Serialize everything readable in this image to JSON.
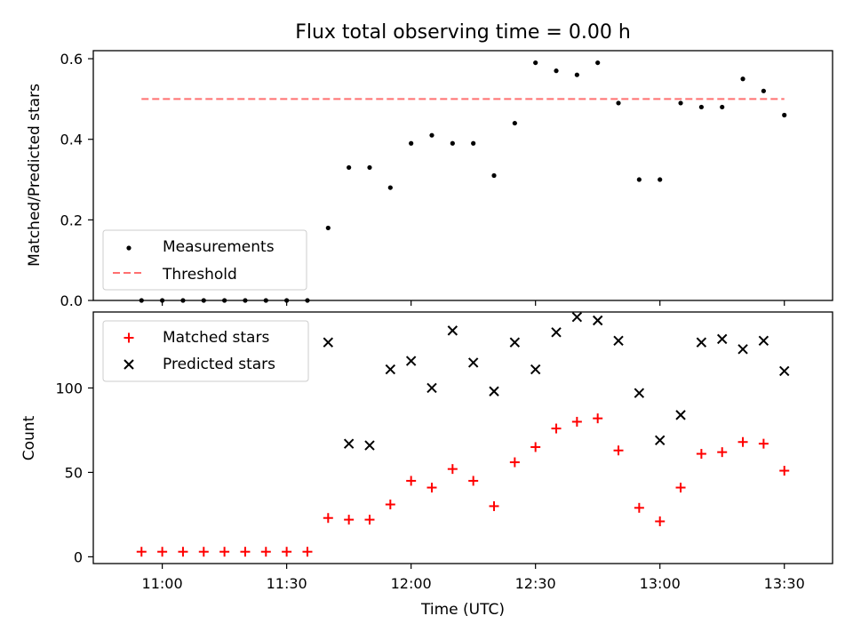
{
  "title": "Flux total observing time = 0.00 h",
  "colors": {
    "measurement": "#000000",
    "threshold": "#ff7070",
    "matched": "#ff0000",
    "predicted": "#000000",
    "axes": "#000000",
    "background": "#ffffff"
  },
  "chart_data": [
    {
      "type": "scatter",
      "ylabel": "Matched/Predicted stars",
      "xlabel": "",
      "ylim": [
        0,
        0.62
      ],
      "yticks": [
        0.0,
        0.2,
        0.4,
        0.6
      ],
      "ytick_labels": [
        "0.0",
        "0.2",
        "0.4",
        "0.6"
      ],
      "grid": false,
      "legend_position": "bottom-left",
      "x": [
        "10:55",
        "11:00",
        "11:05",
        "11:10",
        "11:15",
        "11:20",
        "11:25",
        "11:30",
        "11:35",
        "11:40",
        "11:45",
        "11:50",
        "11:55",
        "12:00",
        "12:05",
        "12:10",
        "12:15",
        "12:20",
        "12:25",
        "12:30",
        "12:35",
        "12:40",
        "12:45",
        "12:50",
        "12:55",
        "13:00",
        "13:05",
        "13:10",
        "13:15",
        "13:20",
        "13:25",
        "13:30"
      ],
      "series": [
        {
          "name": "Measurements",
          "marker": "dot",
          "values": [
            0.0,
            0.0,
            0.0,
            0.0,
            0.0,
            0.0,
            0.0,
            0.0,
            0.0,
            0.18,
            0.33,
            0.33,
            0.28,
            0.39,
            0.41,
            0.39,
            0.39,
            0.31,
            0.44,
            0.59,
            0.57,
            0.56,
            0.59,
            0.49,
            0.3,
            0.3,
            0.49,
            0.48,
            0.48,
            0.55,
            0.52,
            0.46
          ]
        },
        {
          "name": "Threshold",
          "marker": "dashed-line",
          "x_range": [
            "10:55",
            "13:30"
          ],
          "value": 0.5
        }
      ]
    },
    {
      "type": "scatter",
      "ylabel": "Count",
      "xlabel": "Time (UTC)",
      "ylim": [
        -4,
        145
      ],
      "yticks": [
        0,
        50,
        100
      ],
      "ytick_labels": [
        "0",
        "50",
        "100"
      ],
      "xticks": [
        "11:00",
        "11:30",
        "12:00",
        "12:30",
        "13:00",
        "13:30"
      ],
      "grid": false,
      "legend_position": "top-left",
      "x": [
        "10:55",
        "11:00",
        "11:05",
        "11:10",
        "11:15",
        "11:20",
        "11:25",
        "11:30",
        "11:35",
        "11:40",
        "11:45",
        "11:50",
        "11:55",
        "12:00",
        "12:05",
        "12:10",
        "12:15",
        "12:20",
        "12:25",
        "12:30",
        "12:35",
        "12:40",
        "12:45",
        "12:50",
        "12:55",
        "13:00",
        "13:05",
        "13:10",
        "13:15",
        "13:20",
        "13:25",
        "13:30"
      ],
      "series": [
        {
          "name": "Matched stars",
          "marker": "plus",
          "values": [
            3,
            3,
            3,
            3,
            3,
            3,
            3,
            3,
            3,
            23,
            22,
            22,
            31,
            45,
            41,
            52,
            45,
            30,
            56,
            65,
            76,
            80,
            82,
            63,
            29,
            21,
            41,
            61,
            62,
            68,
            67,
            51
          ]
        },
        {
          "name": "Predicted stars",
          "marker": "x",
          "values": [
            null,
            null,
            null,
            null,
            null,
            null,
            null,
            null,
            null,
            127,
            67,
            66,
            111,
            116,
            100,
            134,
            115,
            98,
            127,
            111,
            133,
            142,
            140,
            128,
            97,
            69,
            84,
            127,
            129,
            123,
            128,
            110
          ]
        }
      ]
    }
  ]
}
